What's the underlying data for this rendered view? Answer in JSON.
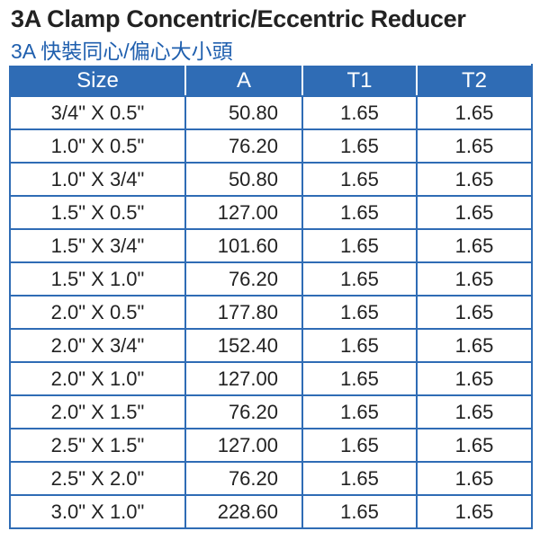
{
  "header": {
    "title": "3A Clamp Concentric/Eccentric Reducer",
    "subtitle": "3A 快裝同心/偏心大小頭"
  },
  "table": {
    "columns": [
      "Size",
      "A",
      "T1",
      "T2"
    ],
    "rows": [
      [
        "3/4\" X 0.5\"",
        "50.80",
        "1.65",
        "1.65"
      ],
      [
        "1.0\" X 0.5\"",
        "76.20",
        "1.65",
        "1.65"
      ],
      [
        "1.0\" X 3/4\"",
        "50.80",
        "1.65",
        "1.65"
      ],
      [
        "1.5\" X 0.5\"",
        "127.00",
        "1.65",
        "1.65"
      ],
      [
        "1.5\" X 3/4\"",
        "101.60",
        "1.65",
        "1.65"
      ],
      [
        "1.5\" X 1.0\"",
        "76.20",
        "1.65",
        "1.65"
      ],
      [
        "2.0\" X 0.5\"",
        "177.80",
        "1.65",
        "1.65"
      ],
      [
        "2.0\" X 3/4\"",
        "152.40",
        "1.65",
        "1.65"
      ],
      [
        "2.0\" X 1.0\"",
        "127.00",
        "1.65",
        "1.65"
      ],
      [
        "2.0\" X 1.5\"",
        "76.20",
        "1.65",
        "1.65"
      ],
      [
        "2.5\" X 1.5\"",
        "127.00",
        "1.65",
        "1.65"
      ],
      [
        "2.5\" X 2.0\"",
        "76.20",
        "1.65",
        "1.65"
      ],
      [
        "3.0\" X 1.0\"",
        "228.60",
        "1.65",
        "1.65"
      ]
    ]
  }
}
